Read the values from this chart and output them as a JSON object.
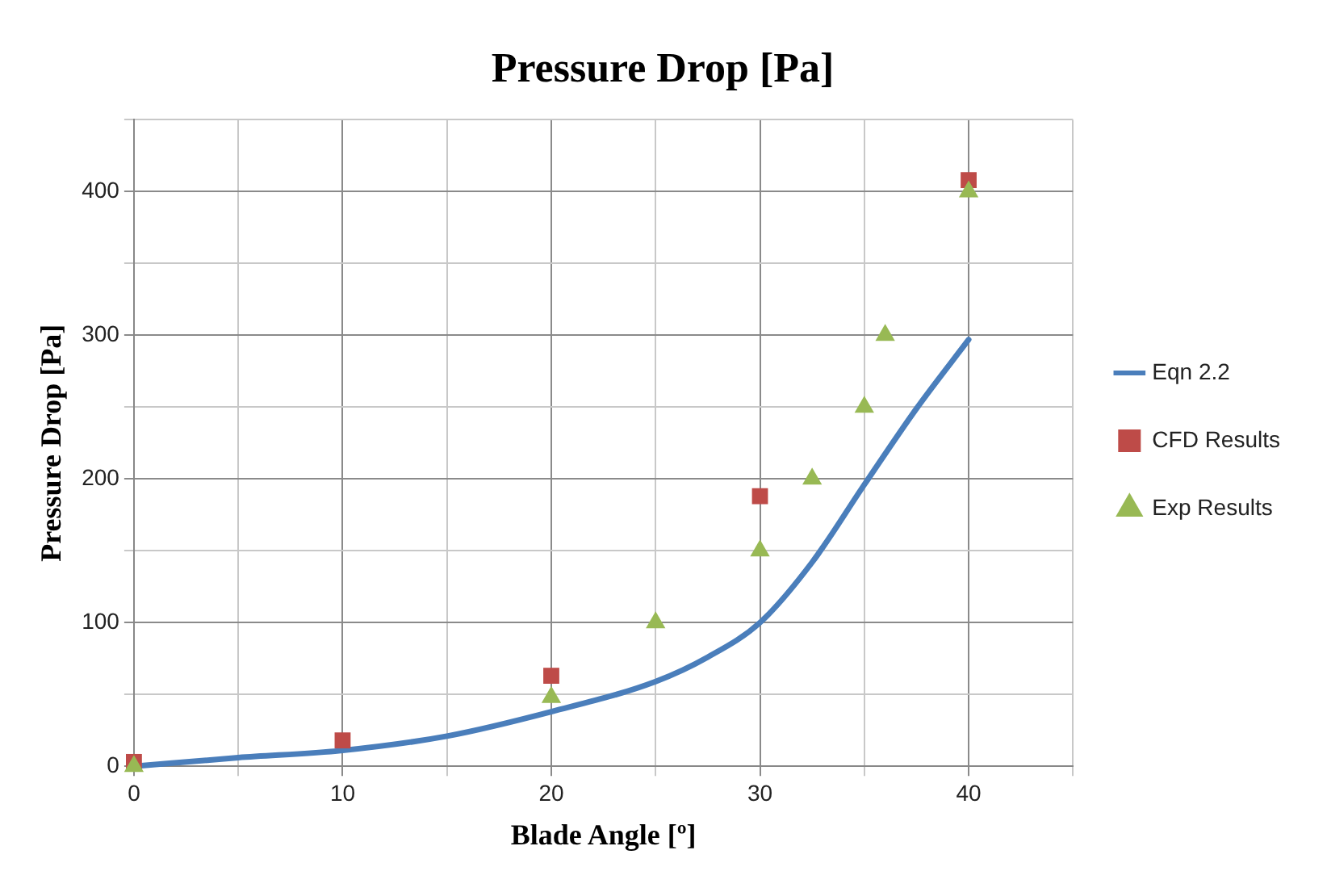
{
  "chart_data": {
    "type": "line",
    "title": "Pressure Drop [Pa]",
    "xlabel": "Blade Angle [º]",
    "ylabel": "Pressure Drop [Pa]",
    "xlim": [
      0,
      45
    ],
    "xticks": [
      0,
      {
        "value": 5,
        "label": null
      },
      10,
      {
        "value": 15,
        "label": null
      },
      20,
      {
        "value": 25,
        "label": null
      },
      30,
      {
        "value": 35,
        "label": null
      },
      40,
      {
        "value": 45,
        "label": null
      }
    ],
    "ylim": [
      0,
      450
    ],
    "yticks": [
      0,
      {
        "value": 50,
        "label": null
      },
      100,
      {
        "value": 150,
        "label": null
      },
      200,
      {
        "value": 250,
        "label": null
      },
      300,
      {
        "value": 350,
        "label": null
      },
      400,
      {
        "value": 450,
        "label": null
      }
    ],
    "grid": true,
    "legend": "right",
    "series": [
      {
        "name": "Eqn 2.2",
        "color": "#4a7ebb",
        "marker": "none",
        "x": [
          0,
          5,
          10,
          15,
          20,
          25,
          27.5,
          30,
          32.5,
          35,
          37.5,
          40
        ],
        "values": [
          0,
          6,
          11,
          21,
          38,
          59,
          76,
          100,
          142,
          196,
          249,
          297
        ]
      },
      {
        "name": "CFD Results",
        "type": "scatter",
        "color": "#be4b48",
        "marker": "square",
        "x": [
          0,
          10,
          20,
          30,
          40
        ],
        "values": [
          3,
          18,
          63,
          188,
          408
        ]
      },
      {
        "name": "Exp Results",
        "type": "scatter",
        "color": "#98b954",
        "marker": "triangle",
        "x": [
          0,
          20,
          25,
          30,
          32.5,
          35,
          36,
          40
        ],
        "values": [
          0,
          48,
          100,
          150,
          200,
          250,
          300,
          400
        ]
      }
    ]
  }
}
